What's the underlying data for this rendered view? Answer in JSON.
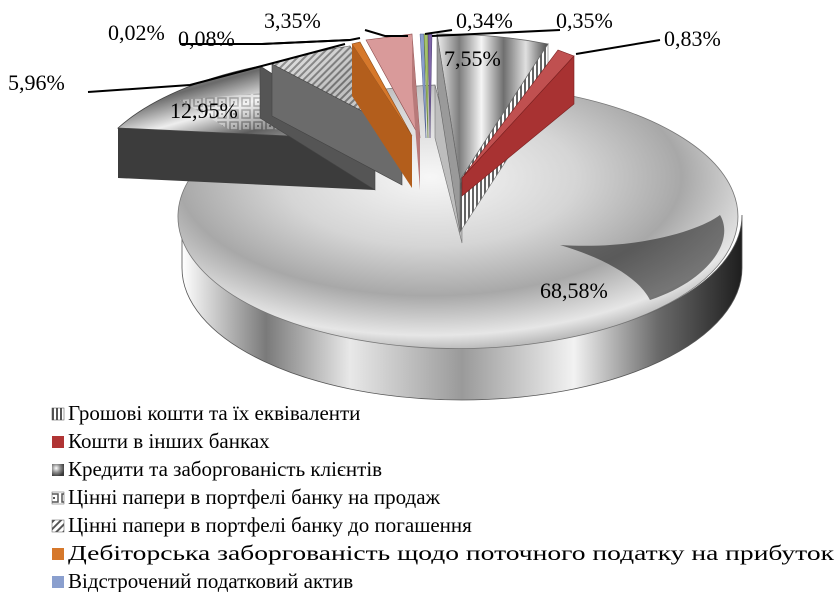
{
  "chart_data": {
    "type": "pie",
    "style": "3d-exploded",
    "title": "",
    "legend_position": "bottom-left",
    "slices": [
      {
        "name": "Грошові кошти та їх еквіваленти",
        "value": 7.55,
        "label": "7,55%",
        "color": "#c9c9c9",
        "swatch": "stripe-gray"
      },
      {
        "name": "Кошти в інших банках",
        "value": 0.83,
        "label": "0,83%",
        "color": "#b03434",
        "swatch": "solid-red"
      },
      {
        "name": "Кредити та заборгованість клієнтів",
        "value": 68.58,
        "label": "68,58%",
        "color": "#cfcfcf",
        "swatch": "cone-gray"
      },
      {
        "name": "Цінні папери в портфелі банку на продаж",
        "value": 12.95,
        "label": "12,95%",
        "color": "#9a9a9a",
        "swatch": "box-gray"
      },
      {
        "name": "Цінні папери в портфелі банку до погашення",
        "value": 5.96,
        "label": "5,96%",
        "color": "#8a8a8a",
        "swatch": "hatch-gray"
      },
      {
        "name": "Дебіторська заборгованість щодо поточного податку на прибуток",
        "value": 0.08,
        "label": "0,08%",
        "color": "#d6782b",
        "swatch": "solid-orange"
      },
      {
        "name": "Відстрочений податковий актив",
        "value": 0.02,
        "label": "0,02%",
        "color": "#8a9fce",
        "swatch": "solid-blue"
      },
      {
        "name": "",
        "value": 3.35,
        "label": "3,35%",
        "color": "#d99a9a",
        "swatch": "solid-pink"
      },
      {
        "name": "",
        "value": 0.34,
        "label": "0,34%",
        "color": "#a6c26b",
        "swatch": "solid-green"
      },
      {
        "name": "",
        "value": 0.35,
        "label": "0,35%",
        "color": "#7f66a8",
        "swatch": "solid-purple"
      }
    ]
  }
}
